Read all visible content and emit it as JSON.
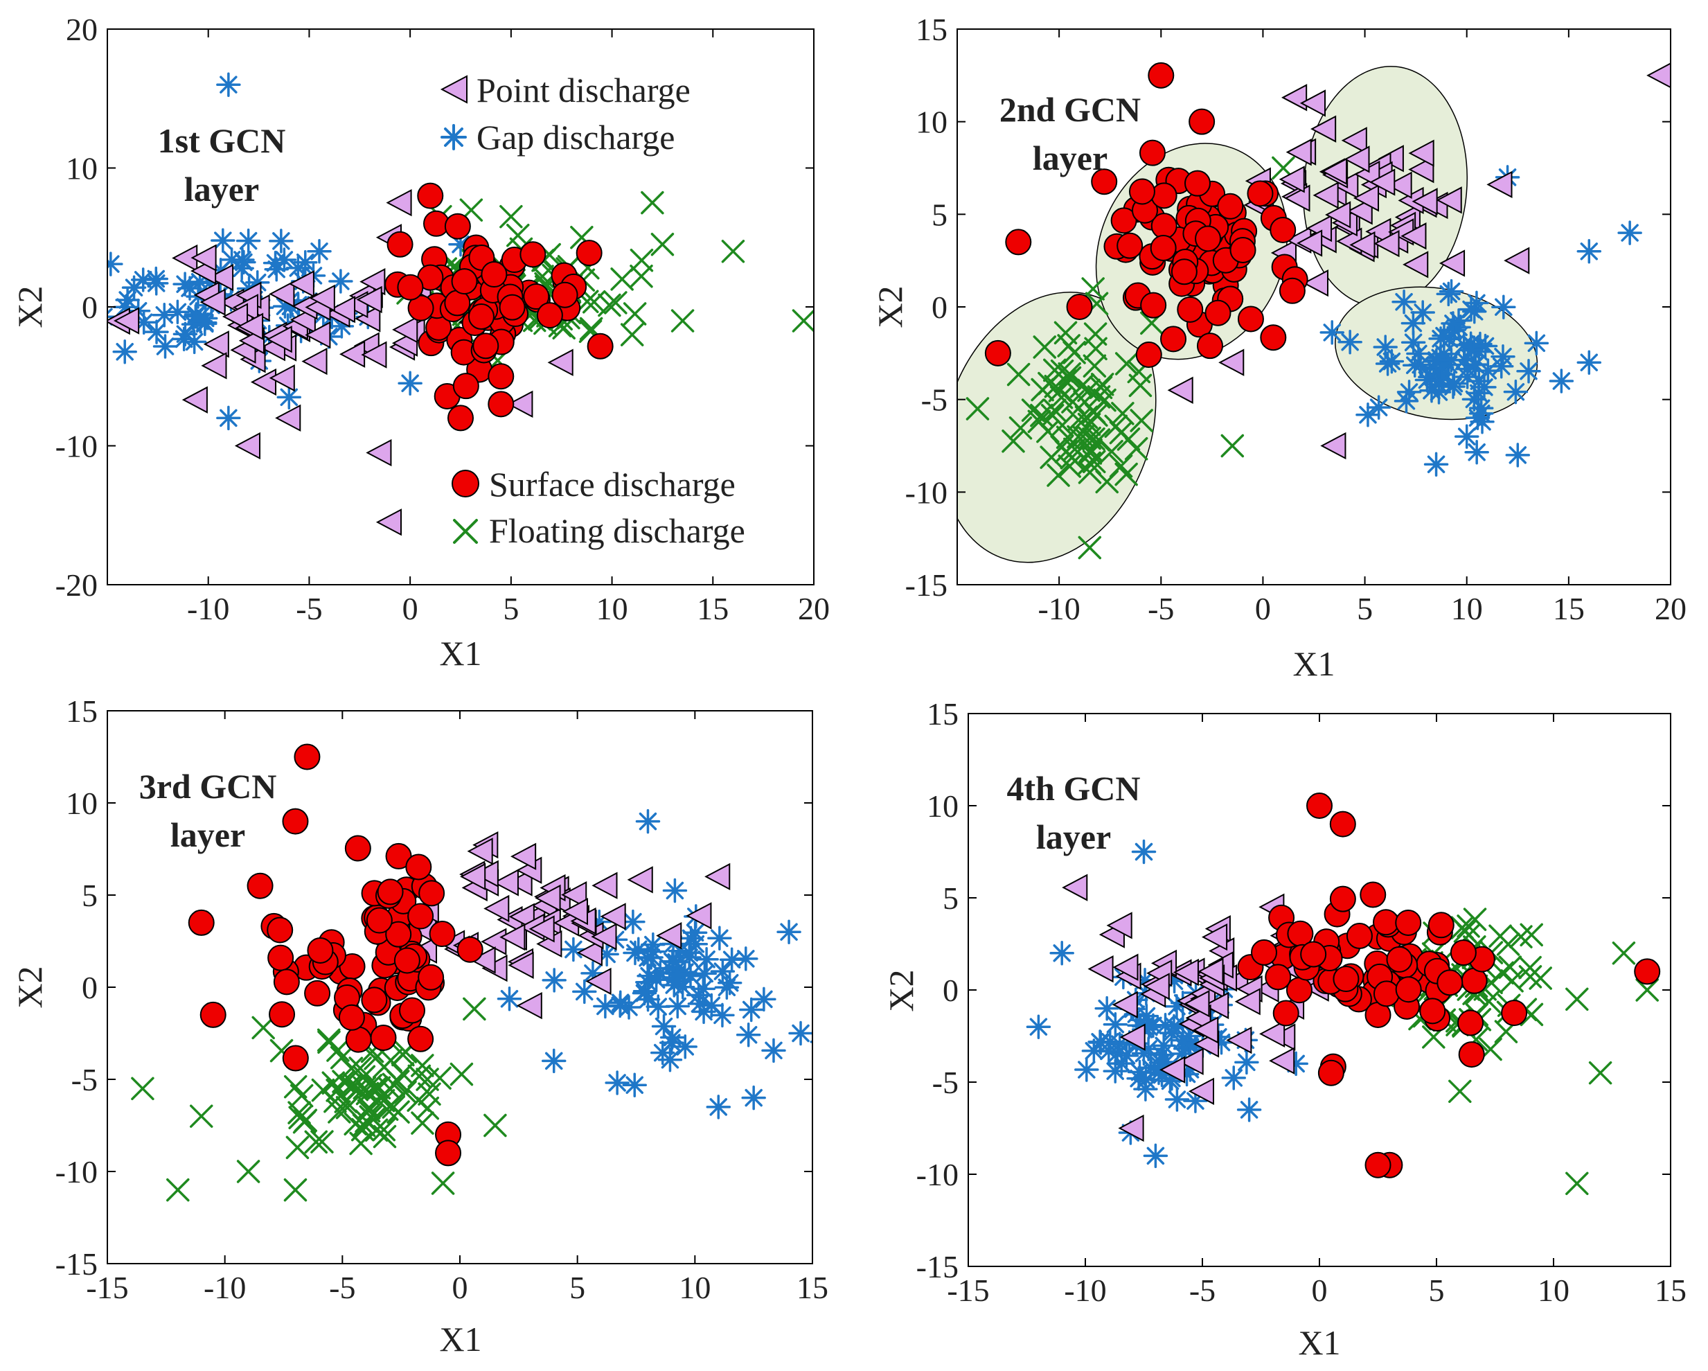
{
  "colors": {
    "point": "#dda6ec",
    "gap": "#1f77c8",
    "surface": "#ee0000",
    "floating": "#1f8a1f",
    "ellipse_fill": "#e6eed9"
  },
  "legend": [
    {
      "key": "point",
      "label": "Point discharge",
      "marker": "triangle-left-icon"
    },
    {
      "key": "gap",
      "label": "Gap discharge",
      "marker": "asterisk-icon"
    },
    {
      "key": "surface",
      "label": "Surface discharge",
      "marker": "circle-icon"
    },
    {
      "key": "floating",
      "label": "Floating discharge",
      "marker": "x-icon"
    }
  ],
  "chart_data": [
    {
      "type": "scatter",
      "title_lines": [
        "1st GCN",
        "layer"
      ],
      "xlabel": "X1",
      "ylabel": "X2",
      "xlim": [
        -15,
        20
      ],
      "ylim": [
        -20,
        20
      ],
      "xticks": [
        -10,
        -5,
        0,
        5,
        10,
        15,
        20
      ],
      "yticks": [
        -20,
        -10,
        0,
        10,
        20
      ],
      "xtick_labels": [
        "-10",
        "-5",
        "0",
        "5",
        "10",
        "15",
        "20"
      ],
      "ytick_labels": [
        "-20",
        "-10",
        "0",
        "10",
        "20"
      ],
      "grid": false,
      "legend": "inside, upper-right and lower-right",
      "ellipses": [],
      "clusters": {
        "point": [
          {
            "cx": -5,
            "cy": -1,
            "sx": 4,
            "sy": 2,
            "n": 55,
            "seed": 11
          }
        ],
        "gap": [
          {
            "cx": -9,
            "cy": 0.5,
            "sx": 3,
            "sy": 1.8,
            "n": 75,
            "seed": 12
          }
        ],
        "surface": [
          {
            "cx": 3,
            "cy": 0.5,
            "sx": 2.5,
            "sy": 2.5,
            "n": 70,
            "seed": 13
          }
        ],
        "floating": [
          {
            "cx": 6,
            "cy": 1,
            "sx": 2.5,
            "sy": 1.8,
            "n": 75,
            "seed": 14
          }
        ]
      },
      "outliers": {
        "point": [
          [
            -14,
            -1
          ],
          [
            -1.5,
            -10.5
          ],
          [
            -1,
            -15.5
          ],
          [
            -1,
            5
          ],
          [
            -0.5,
            7.5
          ],
          [
            -8,
            -10
          ],
          [
            -6,
            -8
          ],
          [
            7.5,
            -4
          ],
          [
            5.5,
            -7
          ]
        ],
        "gap": [
          [
            -9,
            16
          ],
          [
            -9,
            -8
          ],
          [
            -6,
            -6.5
          ],
          [
            -14,
            0.5
          ],
          [
            -4.5,
            4
          ],
          [
            2.5,
            4.5
          ],
          [
            0,
            -5.5
          ]
        ],
        "surface": [
          [
            1,
            8
          ],
          [
            2.5,
            -8
          ],
          [
            4.5,
            -7
          ],
          [
            -0.5,
            4.5
          ],
          [
            4.5,
            -5
          ]
        ],
        "floating": [
          [
            16,
            4
          ],
          [
            19.5,
            -1
          ],
          [
            12,
            7.5
          ],
          [
            13.5,
            -1
          ],
          [
            11,
            -2
          ],
          [
            10.5,
            2
          ],
          [
            12.5,
            4.5
          ],
          [
            5,
            6.5
          ],
          [
            1.5,
            6.5
          ],
          [
            8.5,
            5
          ]
        ]
      }
    },
    {
      "type": "scatter",
      "title_lines": [
        "2nd GCN",
        "layer"
      ],
      "xlabel": "X1",
      "ylabel": "X2",
      "xlim": [
        -15,
        20
      ],
      "ylim": [
        -15,
        15
      ],
      "xticks": [
        -10,
        -5,
        0,
        5,
        10,
        15,
        20
      ],
      "yticks": [
        -15,
        -10,
        -5,
        0,
        5,
        10,
        15
      ],
      "xtick_labels": [
        "-10",
        "-5",
        "0",
        "5",
        "10",
        "15",
        "20"
      ],
      "ytick_labels": [
        "-15",
        "-10",
        "-5",
        "0",
        "5",
        "10",
        "15"
      ],
      "grid": false,
      "ellipses": [
        {
          "cx": -10.5,
          "cy": -6.5,
          "rx": 5,
          "ry": 7.5,
          "rot": 20
        },
        {
          "cx": -3.5,
          "cy": 3,
          "rx": 4.5,
          "ry": 6,
          "rot": 25
        },
        {
          "cx": 6,
          "cy": 6.5,
          "rx": 4,
          "ry": 6.5,
          "rot": 5
        },
        {
          "cx": 8.5,
          "cy": -2.5,
          "rx": 5,
          "ry": 3.5,
          "rot": 10
        }
      ],
      "clusters": {
        "point": [
          {
            "cx": 4.5,
            "cy": 5.5,
            "sx": 2.8,
            "sy": 2.2,
            "n": 60,
            "seed": 21
          }
        ],
        "gap": [
          {
            "cx": 9,
            "cy": -2.5,
            "sx": 1.8,
            "sy": 1.6,
            "n": 75,
            "seed": 22
          }
        ],
        "surface": [
          {
            "cx": -3.5,
            "cy": 3,
            "sx": 2.3,
            "sy": 2.6,
            "n": 75,
            "seed": 23
          }
        ],
        "floating": [
          {
            "cx": -9,
            "cy": -6,
            "sx": 1.6,
            "sy": 2.2,
            "n": 75,
            "seed": 24
          }
        ]
      },
      "outliers": {
        "point": [
          [
            19.5,
            12.5
          ],
          [
            2.5,
            11
          ],
          [
            12.5,
            2.5
          ],
          [
            3.5,
            -7.5
          ],
          [
            -1.5,
            -3
          ],
          [
            -4,
            -4.5
          ]
        ],
        "gap": [
          [
            18,
            4
          ],
          [
            16,
            3
          ],
          [
            12,
            7
          ],
          [
            16,
            -3
          ],
          [
            8.5,
            -8.5
          ],
          [
            12.5,
            -8
          ],
          [
            10,
            -7
          ]
        ],
        "surface": [
          [
            -5,
            12.5
          ],
          [
            -3,
            10
          ],
          [
            -12,
            3.5
          ],
          [
            -13,
            -2.5
          ],
          [
            -9,
            0
          ]
        ],
        "floating": [
          [
            -1.5,
            -7.5
          ],
          [
            1,
            7.5
          ],
          [
            -14,
            -5.5
          ],
          [
            -8.5,
            -13
          ]
        ]
      }
    },
    {
      "type": "scatter",
      "title_lines": [
        "3rd GCN",
        "layer"
      ],
      "xlabel": "X1",
      "ylabel": "X2",
      "xlim": [
        -15,
        15
      ],
      "ylim": [
        -15,
        15
      ],
      "xticks": [
        -15,
        -10,
        -5,
        0,
        5,
        10,
        15
      ],
      "yticks": [
        -15,
        -10,
        -5,
        0,
        5,
        10,
        15
      ],
      "xtick_labels": [
        "-15",
        "-10",
        "-5",
        "0",
        "5",
        "10",
        "15"
      ],
      "ytick_labels": [
        "-15",
        "-10",
        "-5",
        "0",
        "5",
        "10",
        "15"
      ],
      "grid": false,
      "ellipses": [],
      "clusters": {
        "point": [
          {
            "cx": 3,
            "cy": 4,
            "sx": 2.5,
            "sy": 1.8,
            "n": 55,
            "seed": 31
          }
        ],
        "gap": [
          {
            "cx": 9,
            "cy": 0.5,
            "sx": 2.2,
            "sy": 2,
            "n": 75,
            "seed": 32
          }
        ],
        "surface": [
          {
            "cx": -3.5,
            "cy": 1.5,
            "sx": 2,
            "sy": 2.3,
            "n": 70,
            "seed": 33
          }
        ],
        "floating": [
          {
            "cx": -4,
            "cy": -5.5,
            "sx": 1.8,
            "sy": 1.8,
            "n": 75,
            "seed": 34
          }
        ]
      },
      "outliers": {
        "point": [
          [
            11,
            6
          ],
          [
            3,
            -1
          ]
        ],
        "gap": [
          [
            14.5,
            -2.5
          ],
          [
            12.5,
            -6
          ],
          [
            11,
            -6.5
          ],
          [
            4,
            -4
          ],
          [
            14,
            3
          ],
          [
            8,
            9
          ]
        ],
        "surface": [
          [
            -6.5,
            12.5
          ],
          [
            -7,
            9
          ],
          [
            -8.5,
            5.5
          ],
          [
            -11,
            3.5
          ],
          [
            -10.5,
            -1.5
          ],
          [
            -0.5,
            -8
          ],
          [
            -0.5,
            -9
          ]
        ],
        "floating": [
          [
            -12,
            -11
          ],
          [
            -7,
            -11
          ],
          [
            -13.5,
            -5.5
          ],
          [
            -11,
            -7
          ],
          [
            -9,
            -10
          ],
          [
            1.5,
            -7.5
          ]
        ]
      }
    },
    {
      "type": "scatter",
      "title_lines": [
        "4th GCN",
        "layer"
      ],
      "xlabel": "X1",
      "ylabel": "X2",
      "xlim": [
        -15,
        15
      ],
      "ylim": [
        -15,
        15
      ],
      "xticks": [
        -15,
        -10,
        -5,
        0,
        5,
        10,
        15
      ],
      "yticks": [
        -15,
        -10,
        -5,
        0,
        5,
        10,
        15
      ],
      "xtick_labels": [
        "-15",
        "-10",
        "-5",
        "0",
        "5",
        "10",
        "15"
      ],
      "ytick_labels": [
        "-15",
        "-10",
        "-5",
        "0",
        "5",
        "10",
        "15"
      ],
      "grid": false,
      "ellipses": [],
      "clusters": {
        "point": [
          {
            "cx": -4,
            "cy": 0,
            "sx": 2.5,
            "sy": 2,
            "n": 55,
            "seed": 41
          }
        ],
        "gap": [
          {
            "cx": -7,
            "cy": -2.5,
            "sx": 1.6,
            "sy": 1.6,
            "n": 75,
            "seed": 42
          }
        ],
        "surface": [
          {
            "cx": 2.5,
            "cy": 1,
            "sx": 2.6,
            "sy": 1.8,
            "n": 70,
            "seed": 43
          }
        ],
        "floating": [
          {
            "cx": 6,
            "cy": 0.5,
            "sx": 1.8,
            "sy": 1.8,
            "n": 75,
            "seed": 44
          }
        ]
      },
      "outliers": {
        "point": [
          [
            -8.5,
            3.5
          ],
          [
            -2,
            4.5
          ],
          [
            -8,
            -7.5
          ],
          [
            -5,
            -5.5
          ]
        ],
        "gap": [
          [
            -7.5,
            7.5
          ],
          [
            -11,
            2
          ],
          [
            -12,
            -2
          ],
          [
            -3,
            -6.5
          ],
          [
            -7,
            -9
          ],
          [
            -1,
            -4
          ]
        ],
        "surface": [
          [
            0,
            10
          ],
          [
            1,
            9
          ],
          [
            3,
            -9.5
          ],
          [
            2.5,
            -9.5
          ],
          [
            14,
            1
          ],
          [
            0.5,
            -4.5
          ],
          [
            6.5,
            -3.5
          ]
        ],
        "floating": [
          [
            11,
            -10.5
          ],
          [
            12,
            -4.5
          ],
          [
            13,
            2
          ],
          [
            14,
            0
          ],
          [
            11,
            -0.5
          ],
          [
            6,
            -5.5
          ]
        ]
      }
    }
  ]
}
